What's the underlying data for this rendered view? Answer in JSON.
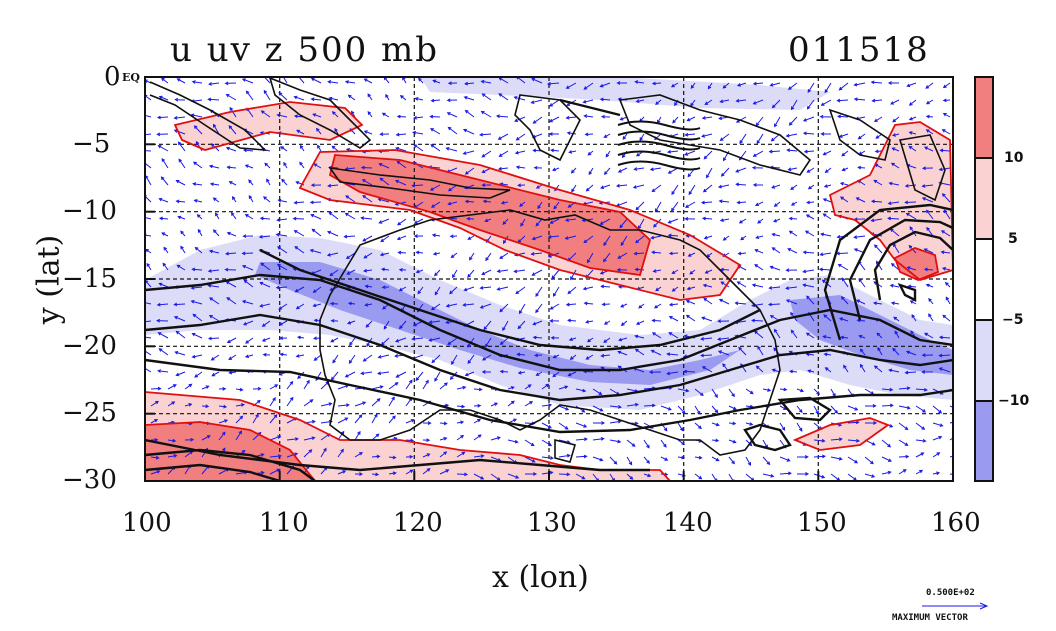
{
  "title": {
    "left": "u uv z 500 mb",
    "right": "011518"
  },
  "map_data": {
    "region": {
      "lon_min": 100,
      "lon_max": 160,
      "lat_min": -30,
      "lat_max": 0
    },
    "fields": [
      "u (shaded)",
      "uv (vectors)",
      "z (contours)"
    ],
    "grid": true
  },
  "axes": {
    "xlabel": "x (lon)",
    "ylabel": "y (lat)",
    "x_ticks": [
      "100",
      "110",
      "120",
      "130",
      "140",
      "150",
      "160"
    ],
    "y_ticks": [
      "0",
      "−5",
      "−10",
      "−15",
      "−20",
      "−25",
      "−30"
    ],
    "eq_label": "EQ"
  },
  "colorbar": {
    "labels": [
      "10",
      "5",
      "−5",
      "−10"
    ],
    "colors": [
      "#f27f7f",
      "#fad2d2",
      "#ffffff",
      "#dcdcf8",
      "#9a9af0"
    ]
  },
  "vector_key": {
    "value": "0.500E+02",
    "label": "MAXIMUM VECTOR",
    "color": "#1a1ae6"
  },
  "colors": {
    "positive": "#f27f7f",
    "positive_light": "#fad2d2",
    "negative_light": "#dcdcf8",
    "negative": "#9a9af0",
    "contour": "#111111",
    "u_contour": "#e01010",
    "vector": "#1a1ae6"
  }
}
